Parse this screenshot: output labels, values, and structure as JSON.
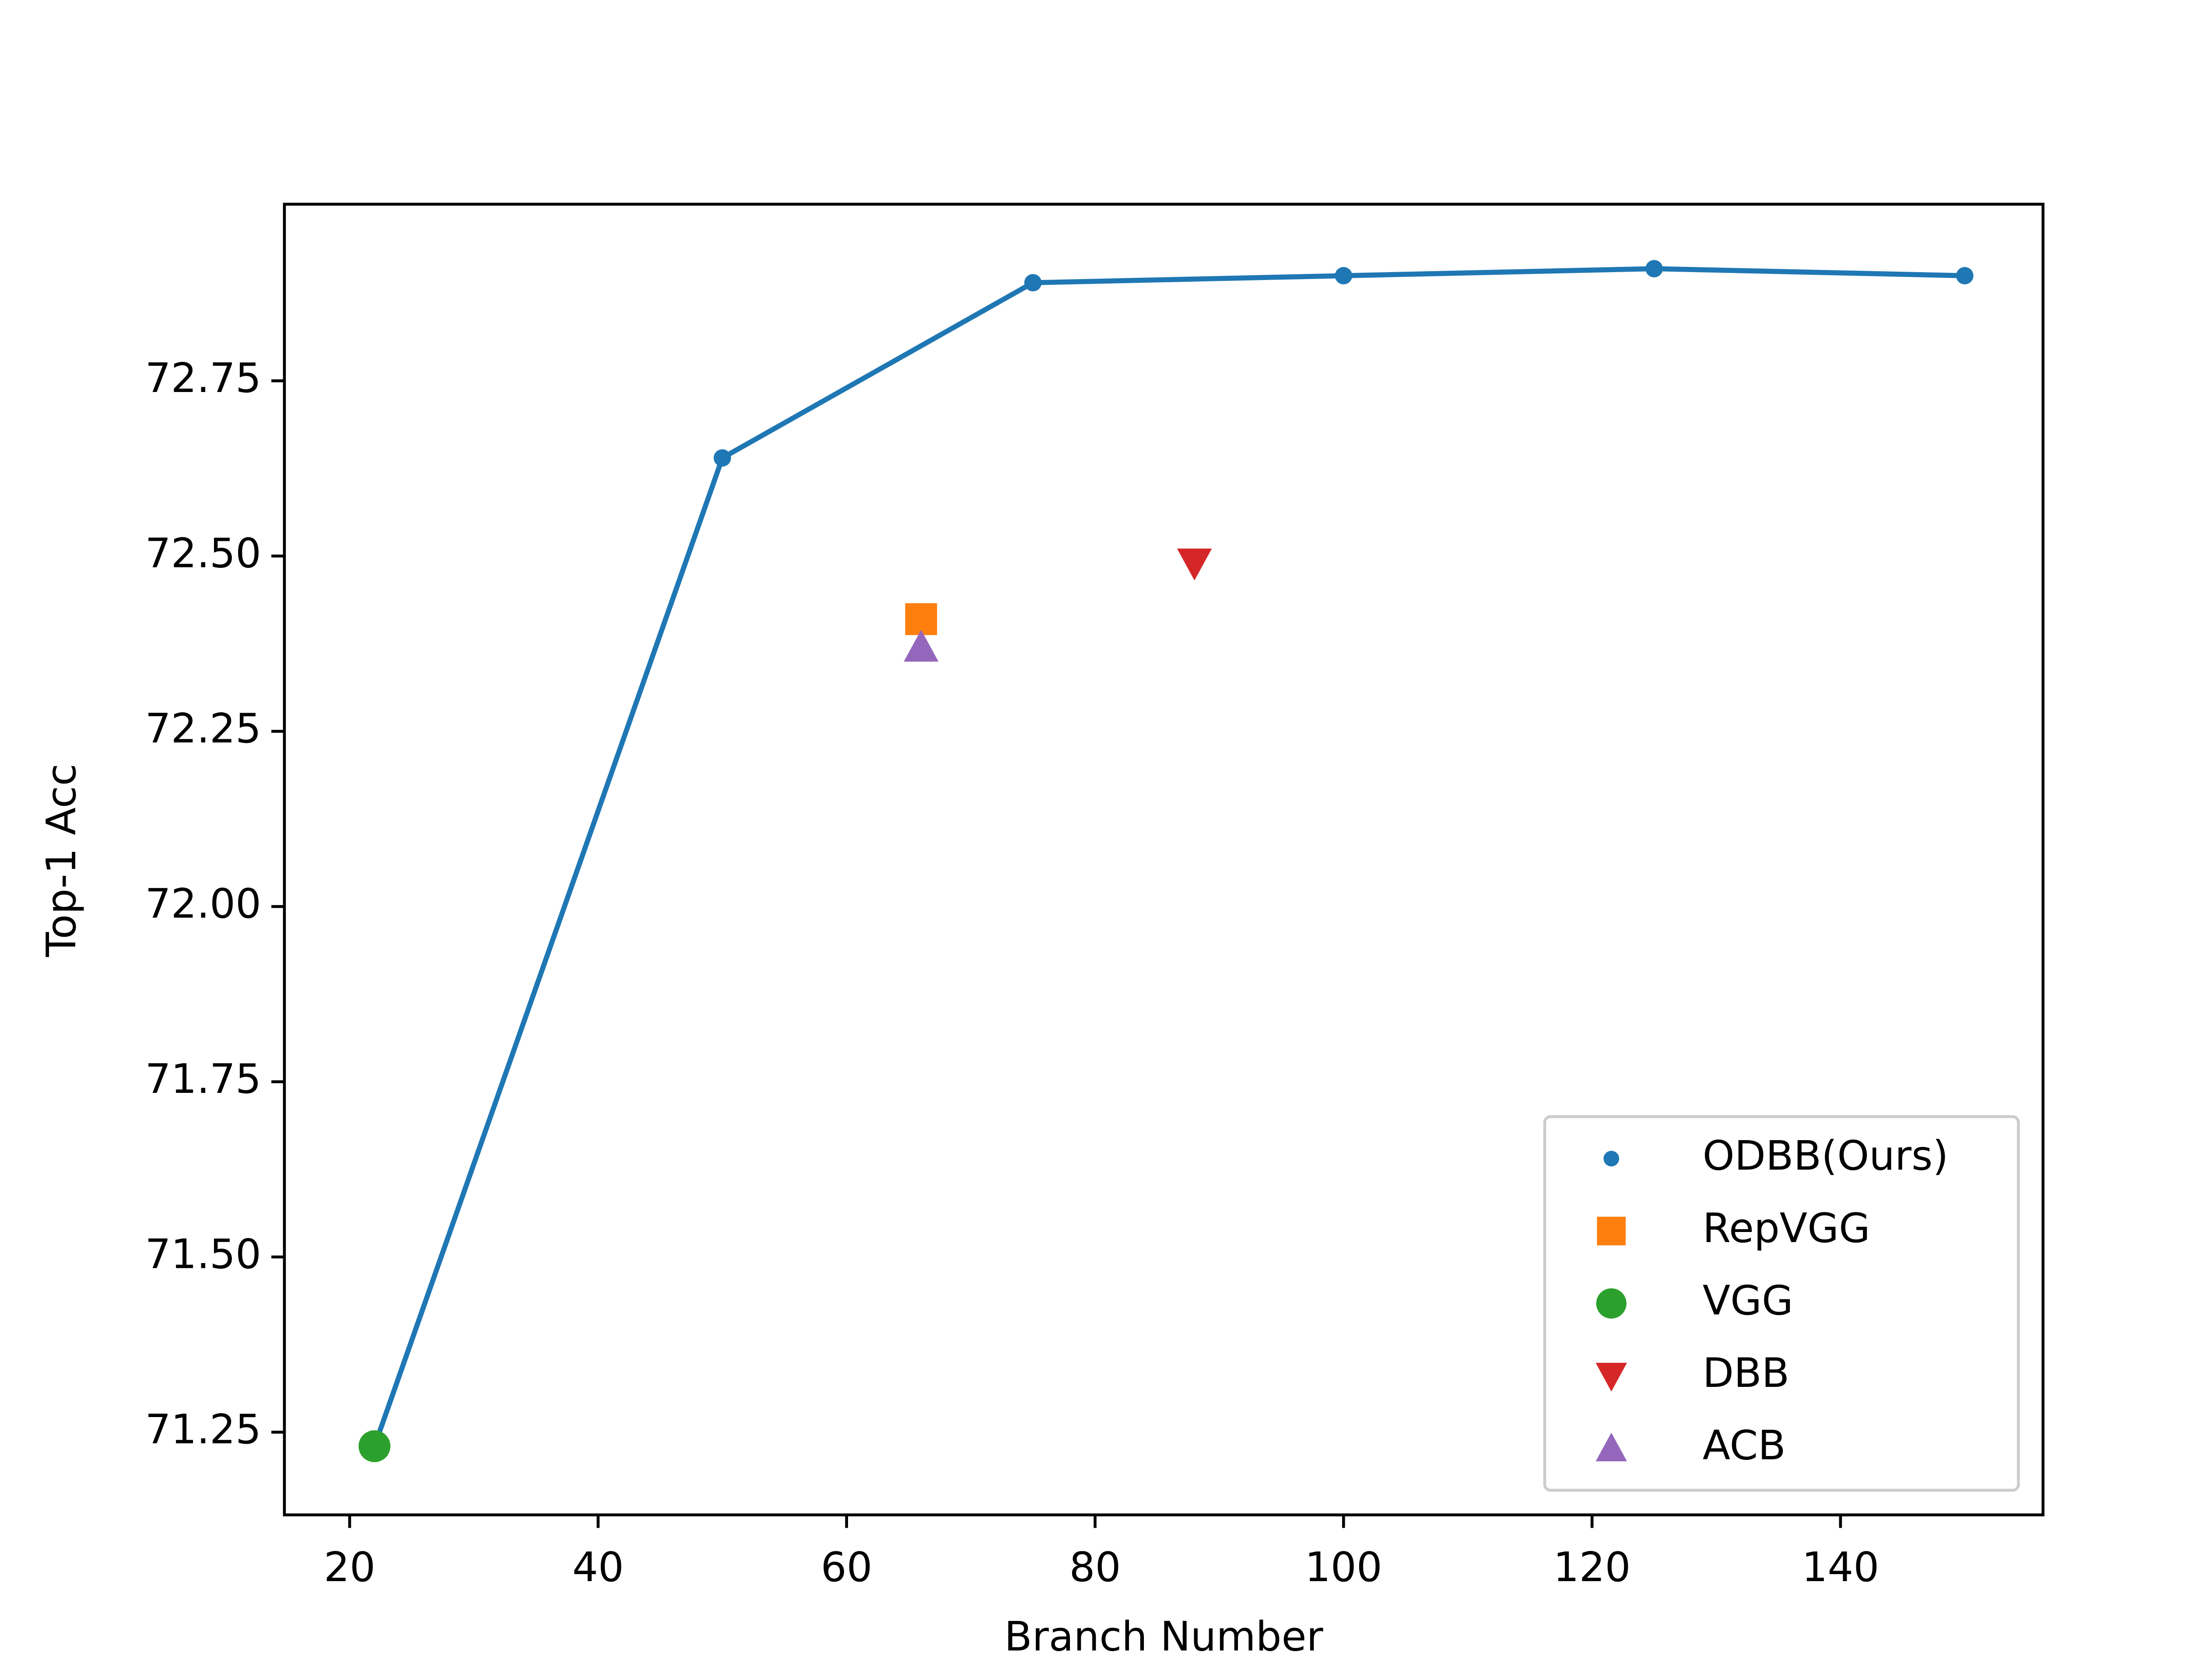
{
  "chart_data": {
    "type": "scatter",
    "x_label": "Branch Number",
    "y_label": "Top-1 Acc",
    "xlim": [
      14.75,
      156.3
    ],
    "ylim": [
      71.132,
      73.002
    ],
    "xticks": [
      20,
      40,
      60,
      80,
      100,
      120,
      140
    ],
    "yticks": [
      71.25,
      {
        "value": 71.5,
        "label": "71.50"
      },
      71.75,
      {
        "value": 72,
        "label": "72.00"
      },
      72.25,
      {
        "value": 72.5,
        "label": "72.50"
      },
      72.75
    ],
    "legend": "lower right",
    "series": [
      {
        "name": "ODBB(Ours)",
        "color": "#1f77b4",
        "marker": "dot",
        "line": true,
        "x": [
          22,
          50,
          75,
          100,
          125,
          150
        ],
        "values": [
          71.23,
          72.64,
          72.89,
          72.9,
          72.91,
          72.9
        ]
      },
      {
        "name": "RepVGG",
        "color": "#ff7f0e",
        "marker": "square",
        "x": [
          66
        ],
        "values": [
          72.41
        ]
      },
      {
        "name": "VGG",
        "color": "#2ca02c",
        "marker": "circle",
        "x": [
          22
        ],
        "values": [
          71.23
        ]
      },
      {
        "name": "DBB",
        "color": "#d62728",
        "marker": "triangle-down",
        "x": [
          88
        ],
        "values": [
          72.49
        ]
      },
      {
        "name": "ACB",
        "color": "#9467bd",
        "marker": "triangle-up",
        "x": [
          66
        ],
        "values": [
          72.37
        ]
      }
    ]
  }
}
